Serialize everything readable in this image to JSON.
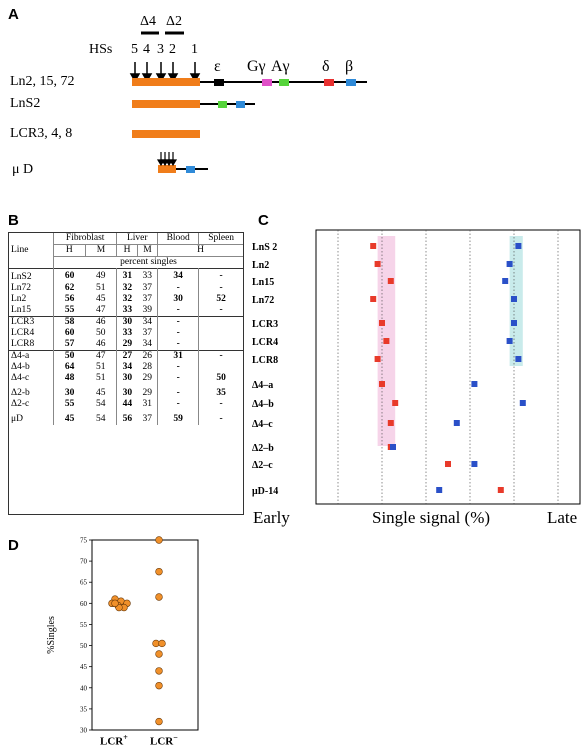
{
  "panelA": {
    "letter": "A",
    "hss_label": "HSs",
    "hs_numbers": [
      "5",
      "4",
      "3",
      "2",
      "1"
    ],
    "deletion_labels": [
      "Δ4",
      "Δ2"
    ],
    "genes": [
      "ε",
      "Gγ",
      "Aγ",
      "δ",
      "β"
    ],
    "constructs": [
      "Ln2, 15, 72",
      "LnS2",
      "LCR3, 4, 8",
      "μ D"
    ],
    "colors": {
      "lcr": "#f07d1a",
      "G_gamma": "#e050c8",
      "A_gamma": "#55d43a",
      "delta": "#e83030",
      "beta": "#2f8ad8",
      "epsilon": "#000000"
    }
  },
  "panelB": {
    "letter": "B",
    "header": {
      "line": "Line",
      "tissues": [
        "Fibroblast",
        "Liver",
        "Blood",
        "Spleen"
      ],
      "sub": [
        "H",
        "M",
        "H",
        "M",
        "H"
      ],
      "units": "percent singles"
    },
    "groups": [
      [
        {
          "line": "LnS2",
          "fH": "60",
          "fM": "49",
          "lH": "31",
          "lM": "33",
          "blood": "34",
          "spleen": "-"
        },
        {
          "line": "Ln72",
          "fH": "62",
          "fM": "51",
          "lH": "32",
          "lM": "37",
          "blood": "-",
          "spleen": "-"
        },
        {
          "line": "Ln2",
          "fH": "56",
          "fM": "45",
          "lH": "32",
          "lM": "37",
          "blood": "30",
          "spleen": "52"
        },
        {
          "line": "Ln15",
          "fH": "55",
          "fM": "47",
          "lH": "33",
          "lM": "39",
          "blood": "-",
          "spleen": "-"
        }
      ],
      [
        {
          "line": "LCR3",
          "fH": "58",
          "fM": "46",
          "lH": "30",
          "lM": "34",
          "blood": "-",
          "spleen": ""
        },
        {
          "line": "LCR4",
          "fH": "60",
          "fM": "50",
          "lH": "33",
          "lM": "37",
          "blood": "-",
          "spleen": ""
        },
        {
          "line": "LCR8",
          "fH": "57",
          "fM": "46",
          "lH": "29",
          "lM": "34",
          "blood": "-",
          "spleen": ""
        }
      ],
      [
        {
          "line": "Δ4-a",
          "fH": "50",
          "fM": "47",
          "lH": "27",
          "lM": "26",
          "blood": "31",
          "spleen": "-"
        },
        {
          "line": "Δ4-b",
          "fH": "64",
          "fM": "51",
          "lH": "34",
          "lM": "28",
          "blood": "-",
          "spleen": ""
        },
        {
          "line": "Δ4-c",
          "fH": "48",
          "fM": "51",
          "lH": "30",
          "lM": "29",
          "blood": "-",
          "spleen": "50"
        },
        {
          "line": "Δ2-b",
          "fH": "30",
          "fM": "45",
          "lH": "30",
          "lM": "29",
          "blood": "-",
          "spleen": "35"
        },
        {
          "line": "Δ2-c",
          "fH": "55",
          "fM": "54",
          "lH": "44",
          "lM": "31",
          "blood": "-",
          "spleen": "-"
        },
        {
          "line": "μD",
          "fH": "45",
          "fM": "54",
          "lH": "56",
          "lM": "37",
          "blood": "59",
          "spleen": "-"
        }
      ]
    ]
  },
  "panelC": {
    "letter": "C",
    "early": "Early",
    "late": "Late",
    "xlabel": "Single signal (%)",
    "ticks": [
      "20",
      "30",
      "40",
      "50",
      "60",
      "70"
    ]
  },
  "panelD": {
    "letter": "D",
    "ylabel": "%Singles",
    "yticks": [
      "30",
      "35",
      "40",
      "45",
      "50",
      "55",
      "60",
      "65",
      "70",
      "75"
    ],
    "lcr_plus_label": "LCR",
    "lcr_plus_sup": "+",
    "lcr_minus_label": "LCR",
    "lcr_minus_sup": "−"
  },
  "chart_data": [
    {
      "type": "scatter",
      "title": "",
      "xlabel": "Single signal (%)",
      "xlim": [
        15,
        75
      ],
      "categories": [
        "LnS 2",
        "Ln2",
        "Ln15",
        "Ln72",
        "LCR3",
        "LCR4",
        "LCR8",
        "Δ4–a",
        "Δ4–b",
        "Δ4–c",
        "Δ2–b",
        "Δ2–c",
        "μD-14"
      ],
      "series": [
        {
          "color": "#e83a2a",
          "values": [
            28,
            29,
            32,
            28,
            30,
            31,
            29,
            30,
            33,
            32,
            32,
            45,
            57
          ]
        },
        {
          "color": "#2a50c8",
          "values": [
            61,
            59,
            58,
            60,
            60,
            59,
            61,
            51,
            62,
            47,
            32.5,
            51,
            43
          ]
        }
      ],
      "grid": true
    },
    {
      "type": "scatter",
      "title": "",
      "ylabel": "%Singles",
      "ylim": [
        30,
        75
      ],
      "categories": [
        "LCR+",
        "LCR−"
      ],
      "series": [
        {
          "name": "LCR+",
          "values": [
            61,
            60.5,
            60,
            60,
            59.5,
            59,
            59,
            60
          ]
        },
        {
          "name": "LCR−",
          "values": [
            75,
            67.5,
            61.5,
            50.5,
            50.5,
            48,
            44,
            40.5,
            32
          ]
        }
      ]
    }
  ]
}
